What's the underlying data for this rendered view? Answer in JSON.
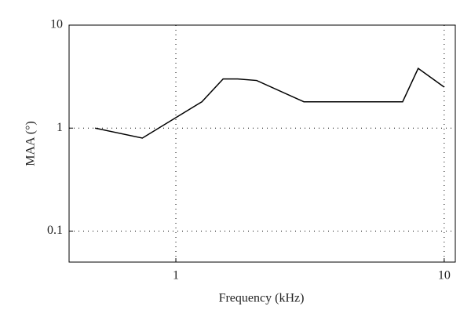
{
  "chart_data": {
    "type": "line",
    "x_label": "Frequency (kHz)",
    "y_label": "MAA (°)",
    "x": [
      0.5,
      0.75,
      1.25,
      1.5,
      1.7,
      2,
      3,
      7,
      8,
      10
    ],
    "series": [
      {
        "name": "MAA",
        "color": "#000000",
        "values": [
          1.0,
          0.8,
          1.8,
          3.0,
          3.0,
          2.9,
          1.8,
          1.8,
          3.8,
          2.5
        ]
      }
    ],
    "xlim": [
      0.4,
      11
    ],
    "ylim": [
      0.05,
      10
    ],
    "xticks": [
      1,
      10
    ],
    "yticks": [
      0.1,
      1,
      10
    ],
    "xscale": "log",
    "yscale": "log",
    "grid": true
  }
}
